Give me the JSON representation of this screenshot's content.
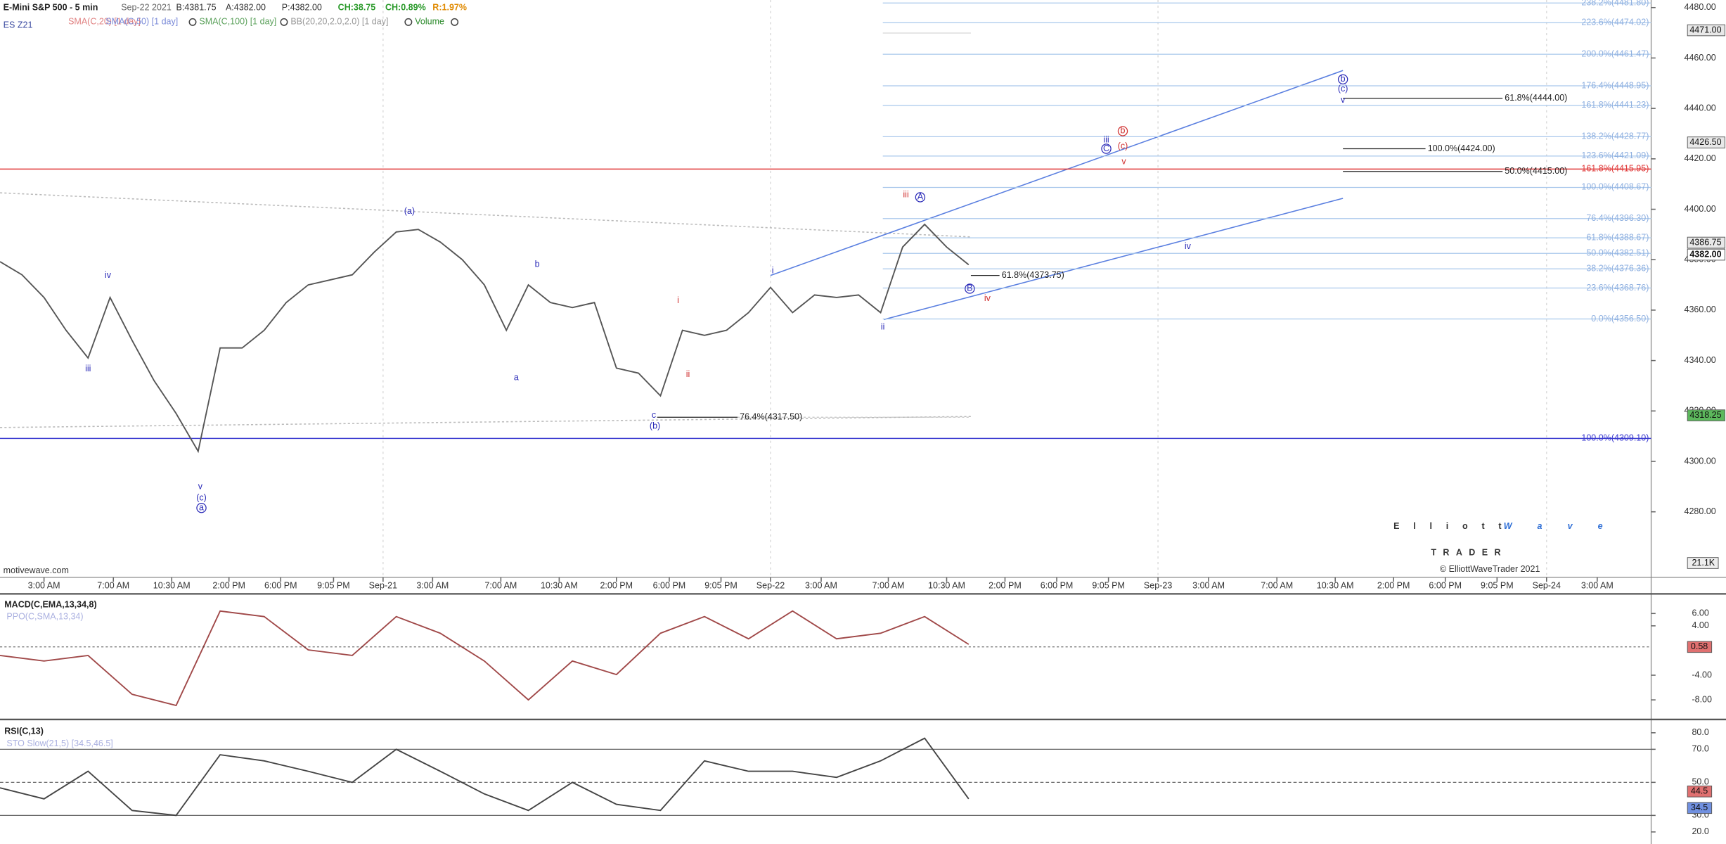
{
  "header": {
    "title": "E-Mini S&P 500 - 5 min",
    "date": "Sep-22 2021",
    "bid": "B:4381.75",
    "ask": "A:4382.00",
    "price": "P:4382.00",
    "change": "CH:38.75",
    "change_pct": "CH:0.89%",
    "range": "R:1.97%",
    "symbol": "ES Z21",
    "indicators": [
      "SMA(C,20) [1 day]",
      "SMA(C,50) [1 day]",
      "SMA(C,100) [1 day]",
      "BB(20,20,2.0,2.0) [1 day]",
      "Volume"
    ]
  },
  "chart_data": [
    {
      "type": "line",
      "time_labels": [
        "3:00 AM",
        "7:00 AM",
        "10:30 AM",
        "2:00 PM",
        "6:00 PM",
        "9:05 PM",
        "Sep-21",
        "3:00 AM",
        "7:00 AM",
        "10:30 AM",
        "2:00 PM",
        "6:00 PM",
        "9:05 PM",
        "Sep-22",
        "3:00 AM",
        "7:00 AM",
        "10:30 AM",
        "2:00 PM",
        "6:00 PM",
        "9:05 PM",
        "Sep-23",
        "3:00 AM",
        "7:00 AM",
        "10:30 AM",
        "2:00 PM",
        "6:00 PM",
        "9:05 PM",
        "Sep-24",
        "3:00 AM"
      ],
      "series": [
        {
          "color": "#555555",
          "values": [
            4379.2,
            4374,
            4365,
            4352,
            4341,
            4365,
            4348,
            4332,
            4319,
            4304,
            4345,
            4345,
            4352,
            4363,
            4370,
            4372,
            4374,
            4383,
            4391,
            4392,
            4387,
            4380,
            4370,
            4352,
            4370,
            4363,
            4361,
            4363,
            4337,
            4335,
            4326,
            4352,
            4350,
            4352,
            4359,
            4369,
            4359,
            4366,
            4365,
            4366,
            4359,
            4385,
            4394,
            4385,
            4378
          ]
        }
      ],
      "ylim": [
        4254,
        4483
      ],
      "yticks": [
        {
          "value": 4280,
          "label": "4280.00"
        },
        {
          "value": 4300,
          "label": "4300.00"
        },
        {
          "value": 4320,
          "label": "4320.00"
        },
        {
          "value": 4340,
          "label": "4340.00"
        },
        {
          "value": 4360,
          "label": "4360.00"
        },
        {
          "value": 4380,
          "label": "4380.00"
        },
        {
          "value": 4400,
          "label": "4400.00"
        },
        {
          "value": 4420,
          "label": "4420.00"
        },
        {
          "value": 4440,
          "label": "4440.00"
        },
        {
          "value": 4460,
          "label": "4460.00"
        },
        {
          "value": 4480,
          "label": "4480.00"
        }
      ],
      "price_badges": [
        {
          "value": 4471.0,
          "label": "4471.00",
          "color": "#e8e8e8"
        },
        {
          "value": 4426.5,
          "label": "4426.50",
          "color": "#e8e8e8"
        },
        {
          "value": 4386.75,
          "label": "4386.75",
          "color": "#e8e8e8"
        },
        {
          "value": 4382.0,
          "label": "4382.00",
          "color": "#ffffff"
        },
        {
          "value": 4318.25,
          "label": "4318.25",
          "color": "#5cb85c"
        }
      ],
      "volume_badge": "21.1K",
      "fib_levels": [
        {
          "value": 4481.8,
          "label": "238.2%(4481.80)"
        },
        {
          "value": 4474.02,
          "label": "223.6%(4474.02)"
        },
        {
          "value": 4461.47,
          "label": "200.0%(4461.47)"
        },
        {
          "value": 4448.95,
          "label": "176.4%(4448.95)"
        },
        {
          "value": 4441.23,
          "label": "161.8%(4441.23)"
        },
        {
          "value": 4428.77,
          "label": "138.2%(4428.77)"
        },
        {
          "value": 4421.09,
          "label": "123.6%(4421.09)"
        },
        {
          "value": 4408.67,
          "label": "100.0%(4408.67)"
        },
        {
          "value": 4396.3,
          "label": "76.4%(4396.30)"
        },
        {
          "value": 4388.67,
          "label": "61.8%(4388.67)"
        },
        {
          "value": 4382.51,
          "label": "50.0%(4382.51)"
        },
        {
          "value": 4376.36,
          "label": "38.2%(4376.36)"
        },
        {
          "value": 4368.76,
          "label": "23.6%(4368.76)"
        },
        {
          "value": 4356.5,
          "label": "0.0%(4356.50)"
        }
      ],
      "wide_levels": [
        {
          "value": 4415.95,
          "label": "161.8%(4415.95)",
          "color": "#e03a3a"
        },
        {
          "value": 4309.1,
          "label": "100.0%(4309.10)",
          "color": "#3a3ad0"
        }
      ],
      "fib_lines": [
        {
          "value": 4444.0,
          "label": "61.8%(4444.00)"
        },
        {
          "value": 4424.0,
          "label": "100.0%(4424.00)"
        },
        {
          "value": 4415.0,
          "label": "50.0%(4415.00)"
        },
        {
          "value": 4317.5,
          "label": "76.4%(4317.50)"
        },
        {
          "value": 4373.75,
          "label": "61.8%(4373.75)"
        }
      ],
      "wave_labels": [
        {
          "text": "iii",
          "color": "#2a2ab8"
        },
        {
          "text": "iv",
          "color": "#2a2ab8"
        },
        {
          "text": "v",
          "color": "#2a2ab8"
        },
        {
          "text": "(c)",
          "color": "#2a2ab8"
        },
        {
          "text": "a",
          "color": "#2a2ab8",
          "circled": true
        },
        {
          "text": "(a)",
          "color": "#2a2ab8"
        },
        {
          "text": "b",
          "color": "#2a2ab8"
        },
        {
          "text": "a",
          "color": "#2a2ab8"
        },
        {
          "text": "c",
          "color": "#2a2ab8"
        },
        {
          "text": "(b)",
          "color": "#2a2ab8"
        },
        {
          "text": "i",
          "color": "#d03030"
        },
        {
          "text": "ii",
          "color": "#d03030"
        },
        {
          "text": "i",
          "color": "#2a2ab8"
        },
        {
          "text": "ii",
          "color": "#2a2ab8"
        },
        {
          "text": "iii",
          "color": "#d03030"
        },
        {
          "text": "A",
          "color": "#2a2ab8",
          "circled": true
        },
        {
          "text": "B",
          "color": "#2a2ab8",
          "circled": true
        },
        {
          "text": "iv",
          "color": "#d03030"
        },
        {
          "text": "iii",
          "color": "#2a2ab8"
        },
        {
          "text": "C",
          "color": "#2a2ab8",
          "circled": true
        },
        {
          "text": "b",
          "color": "#d03030",
          "circled": true
        },
        {
          "text": "(c)",
          "color": "#d03030"
        },
        {
          "text": "v",
          "color": "#d03030"
        },
        {
          "text": "iv",
          "color": "#2a2ab8"
        },
        {
          "text": "b",
          "color": "#2a2ab8",
          "circled": true
        },
        {
          "text": "(c)",
          "color": "#2a2ab8"
        },
        {
          "text": "v",
          "color": "#2a2ab8"
        }
      ]
    },
    {
      "type": "line",
      "title": "MACD(C,EMA,13,34,8)",
      "subtitle": "PPO(C,SMA,13,34)",
      "series": [
        {
          "color": "#a04848",
          "values": [
            -0.8,
            -1.7,
            -0.8,
            -7.1,
            -8.9,
            6.4,
            5.5,
            0.1,
            -0.8,
            5.5,
            2.8,
            -1.7,
            -8.0,
            -1.7,
            -3.9,
            2.8,
            5.5,
            1.9,
            6.4,
            1.9,
            2.8,
            5.5,
            1.0
          ]
        }
      ],
      "ylim": [
        -11,
        9
      ],
      "yticks": [
        {
          "value": 6,
          "label": "6.00"
        },
        {
          "value": 4,
          "label": "4.00"
        },
        {
          "value": -4,
          "label": "-4.00"
        },
        {
          "value": -8,
          "label": "-8.00"
        }
      ],
      "badge": {
        "value": 0.58,
        "label": "0.58",
        "color": "#e07070"
      }
    },
    {
      "type": "line",
      "title": "RSI(C,13)",
      "subtitle": "STO Slow(21,5) [34.5,46.5]",
      "series": [
        {
          "color": "#444444",
          "values": [
            46.7,
            40,
            56.7,
            33,
            30,
            66.7,
            63,
            56.7,
            50,
            70,
            56.7,
            43,
            33,
            50,
            36.7,
            33,
            63,
            56.7,
            56.7,
            53,
            63,
            76.7,
            40
          ]
        }
      ],
      "ylim": [
        12.7,
        86.7
      ],
      "yticks": [
        {
          "value": 80,
          "label": "80.0"
        },
        {
          "value": 70,
          "label": "70.0"
        },
        {
          "value": 50,
          "label": "50.0"
        },
        {
          "value": 30,
          "label": "30.0"
        },
        {
          "value": 20,
          "label": "20.0"
        }
      ],
      "badges": [
        {
          "value": 44.5,
          "label": "44.5",
          "color": "#e07070"
        },
        {
          "value": 34.5,
          "label": "34.5",
          "color": "#7090e0"
        }
      ]
    }
  ],
  "footer": {
    "source": "motivewave.com",
    "logo_left": "Elliott",
    "logo_right": "Wave",
    "logo_bottom": "TRADER",
    "copyright": "© ElliottWaveTrader 2021"
  }
}
